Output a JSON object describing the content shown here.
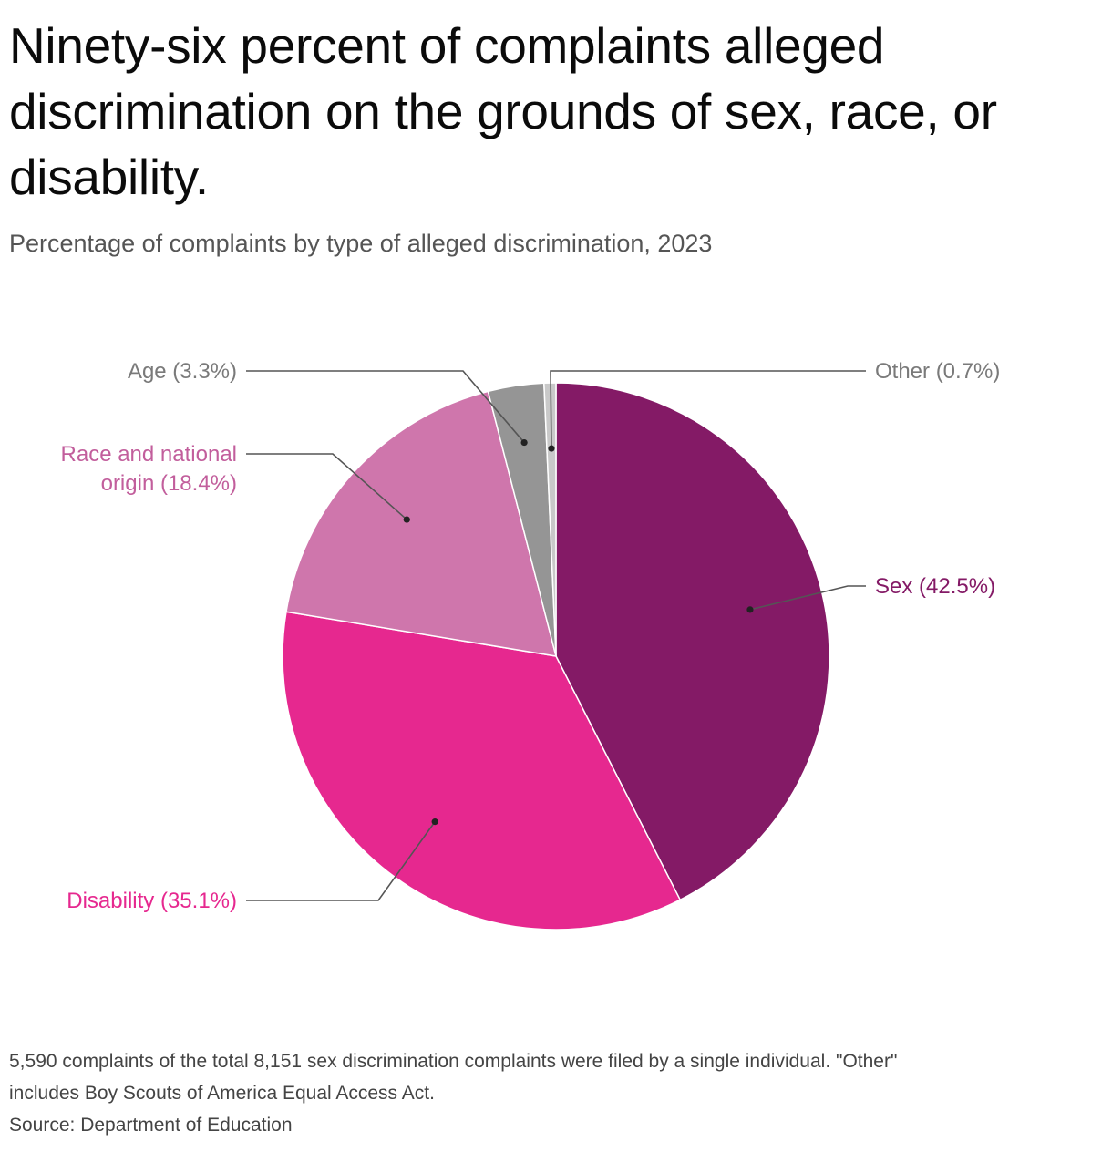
{
  "header": {
    "title": "Ninety-six percent of complaints alleged discrimination on the grounds of sex, race, or disability.",
    "subtitle": "Percentage of complaints by type of alleged discrimination, 2023"
  },
  "chart_data": {
    "type": "pie",
    "title": "Percentage of complaints by type of alleged discrimination, 2023",
    "slices": [
      {
        "name": "Sex",
        "value": 42.5,
        "label_lines": [
          "Sex (42.5%)"
        ],
        "color": "#841A66",
        "label_color": "#841A66",
        "side": "right"
      },
      {
        "name": "Disability",
        "value": 35.1,
        "label_lines": [
          "Disability (35.1%)"
        ],
        "color": "#E6288F",
        "label_color": "#E6288F",
        "side": "left"
      },
      {
        "name": "Race and national origin",
        "value": 18.4,
        "label_lines": [
          "Race and national",
          "origin (18.4%)"
        ],
        "color": "#CF76AC",
        "label_color": "#C25E9C",
        "side": "left"
      },
      {
        "name": "Age",
        "value": 3.3,
        "label_lines": [
          "Age (3.3%)"
        ],
        "color": "#959595",
        "label_color": "#7a7a7a",
        "side": "left"
      },
      {
        "name": "Other",
        "value": 0.7,
        "label_lines": [
          "Other (0.7%)"
        ],
        "color": "#C9C9C9",
        "label_color": "#7a7a7a",
        "side": "right"
      }
    ]
  },
  "footer": {
    "note_line1": "5,590 complaints of the total 8,151 sex discrimination complaints were filed by a single individual. \"Other\"",
    "note_line2": "includes Boy Scouts of America Equal Access Act.",
    "source": "Source: Department of Education"
  }
}
